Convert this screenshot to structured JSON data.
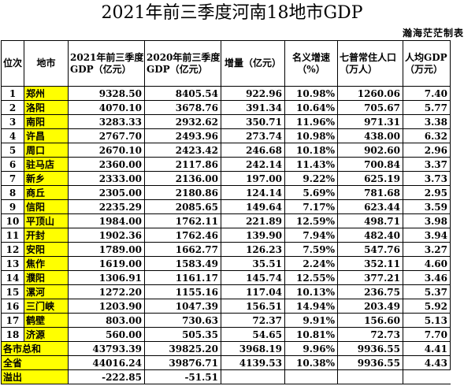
{
  "title": "2021年前三季度河南18地市GDP",
  "credit": "瀚海茫茫制表",
  "columns": [
    "位次",
    "地市",
    "2021年前三季度GDP（亿元）",
    "2020年前三季度GDP（亿元）",
    "增量（亿元）",
    "名义增速（%）",
    "七普常住人口（万人）",
    "人均GDP（万元）"
  ],
  "rows": [
    {
      "rank": "1",
      "city": "郑州",
      "gdp2021": "9328.50",
      "gdp2020": "8405.54",
      "incr": "922.96",
      "growth": "10.98%",
      "pop": "1260.06",
      "pc": "7.40"
    },
    {
      "rank": "2",
      "city": "洛阳",
      "gdp2021": "4070.10",
      "gdp2020": "3678.76",
      "incr": "391.34",
      "growth": "10.64%",
      "pop": "705.67",
      "pc": "5.77"
    },
    {
      "rank": "3",
      "city": "南阳",
      "gdp2021": "3283.33",
      "gdp2020": "2932.62",
      "incr": "350.71",
      "growth": "11.96%",
      "pop": "971.31",
      "pc": "3.38"
    },
    {
      "rank": "4",
      "city": "许昌",
      "gdp2021": "2767.70",
      "gdp2020": "2493.96",
      "incr": "273.74",
      "growth": "10.98%",
      "pop": "438.00",
      "pc": "6.32"
    },
    {
      "rank": "5",
      "city": "周口",
      "gdp2021": "2670.10",
      "gdp2020": "2423.42",
      "incr": "246.68",
      "growth": "10.18%",
      "pop": "902.60",
      "pc": "2.96"
    },
    {
      "rank": "6",
      "city": "驻马店",
      "gdp2021": "2360.00",
      "gdp2020": "2117.86",
      "incr": "242.14",
      "growth": "11.43%",
      "pop": "700.84",
      "pc": "3.37"
    },
    {
      "rank": "7",
      "city": "新乡",
      "gdp2021": "2333.00",
      "gdp2020": "2136.00",
      "incr": "197.00",
      "growth": "9.22%",
      "pop": "625.19",
      "pc": "3.73"
    },
    {
      "rank": "8",
      "city": "商丘",
      "gdp2021": "2305.00",
      "gdp2020": "2180.86",
      "incr": "124.14",
      "growth": "5.69%",
      "pop": "781.68",
      "pc": "2.95"
    },
    {
      "rank": "9",
      "city": "信阳",
      "gdp2021": "2235.29",
      "gdp2020": "2085.65",
      "incr": "149.64",
      "growth": "7.17%",
      "pop": "623.44",
      "pc": "3.59"
    },
    {
      "rank": "10",
      "city": "平顶山",
      "gdp2021": "1984.00",
      "gdp2020": "1762.11",
      "incr": "221.89",
      "growth": "12.59%",
      "pop": "498.71",
      "pc": "3.98"
    },
    {
      "rank": "11",
      "city": "开封",
      "gdp2021": "1902.36",
      "gdp2020": "1762.46",
      "incr": "139.90",
      "growth": "7.94%",
      "pop": "482.40",
      "pc": "3.94"
    },
    {
      "rank": "12",
      "city": "安阳",
      "gdp2021": "1789.00",
      "gdp2020": "1662.77",
      "incr": "126.23",
      "growth": "7.59%",
      "pop": "547.76",
      "pc": "3.27"
    },
    {
      "rank": "13",
      "city": "焦作",
      "gdp2021": "1619.00",
      "gdp2020": "1583.49",
      "incr": "35.51",
      "growth": "2.24%",
      "pop": "352.11",
      "pc": "4.60"
    },
    {
      "rank": "14",
      "city": "濮阳",
      "gdp2021": "1306.91",
      "gdp2020": "1161.17",
      "incr": "145.74",
      "growth": "12.55%",
      "pop": "377.21",
      "pc": "3.46"
    },
    {
      "rank": "15",
      "city": "漯河",
      "gdp2021": "1272.20",
      "gdp2020": "1155.16",
      "incr": "117.04",
      "growth": "10.13%",
      "pop": "236.75",
      "pc": "5.37"
    },
    {
      "rank": "16",
      "city": "三门峡",
      "gdp2021": "1203.90",
      "gdp2020": "1047.39",
      "incr": "156.51",
      "growth": "14.94%",
      "pop": "203.49",
      "pc": "5.92"
    },
    {
      "rank": "17",
      "city": "鹤壁",
      "gdp2021": "803.00",
      "gdp2020": "730.63",
      "incr": "72.37",
      "growth": "9.91%",
      "pop": "156.60",
      "pc": "5.13"
    },
    {
      "rank": "18",
      "city": "济源",
      "gdp2021": "560.00",
      "gdp2020": "505.35",
      "incr": "54.65",
      "growth": "10.81%",
      "pop": "72.73",
      "pc": "7.70"
    }
  ],
  "summary": [
    {
      "label": "各市总和",
      "gdp2021": "43793.39",
      "gdp2020": "39825.20",
      "incr": "3968.19",
      "growth": "9.96%",
      "pop": "9936.55",
      "pc": "4.41"
    },
    {
      "label": "全省",
      "gdp2021": "44016.24",
      "gdp2020": "39876.71",
      "incr": "4139.53",
      "growth": "10.38%",
      "pop": "9936.55",
      "pc": "4.43"
    },
    {
      "label": "溢出",
      "gdp2021": "-222.85",
      "gdp2020": "-51.51"
    }
  ]
}
